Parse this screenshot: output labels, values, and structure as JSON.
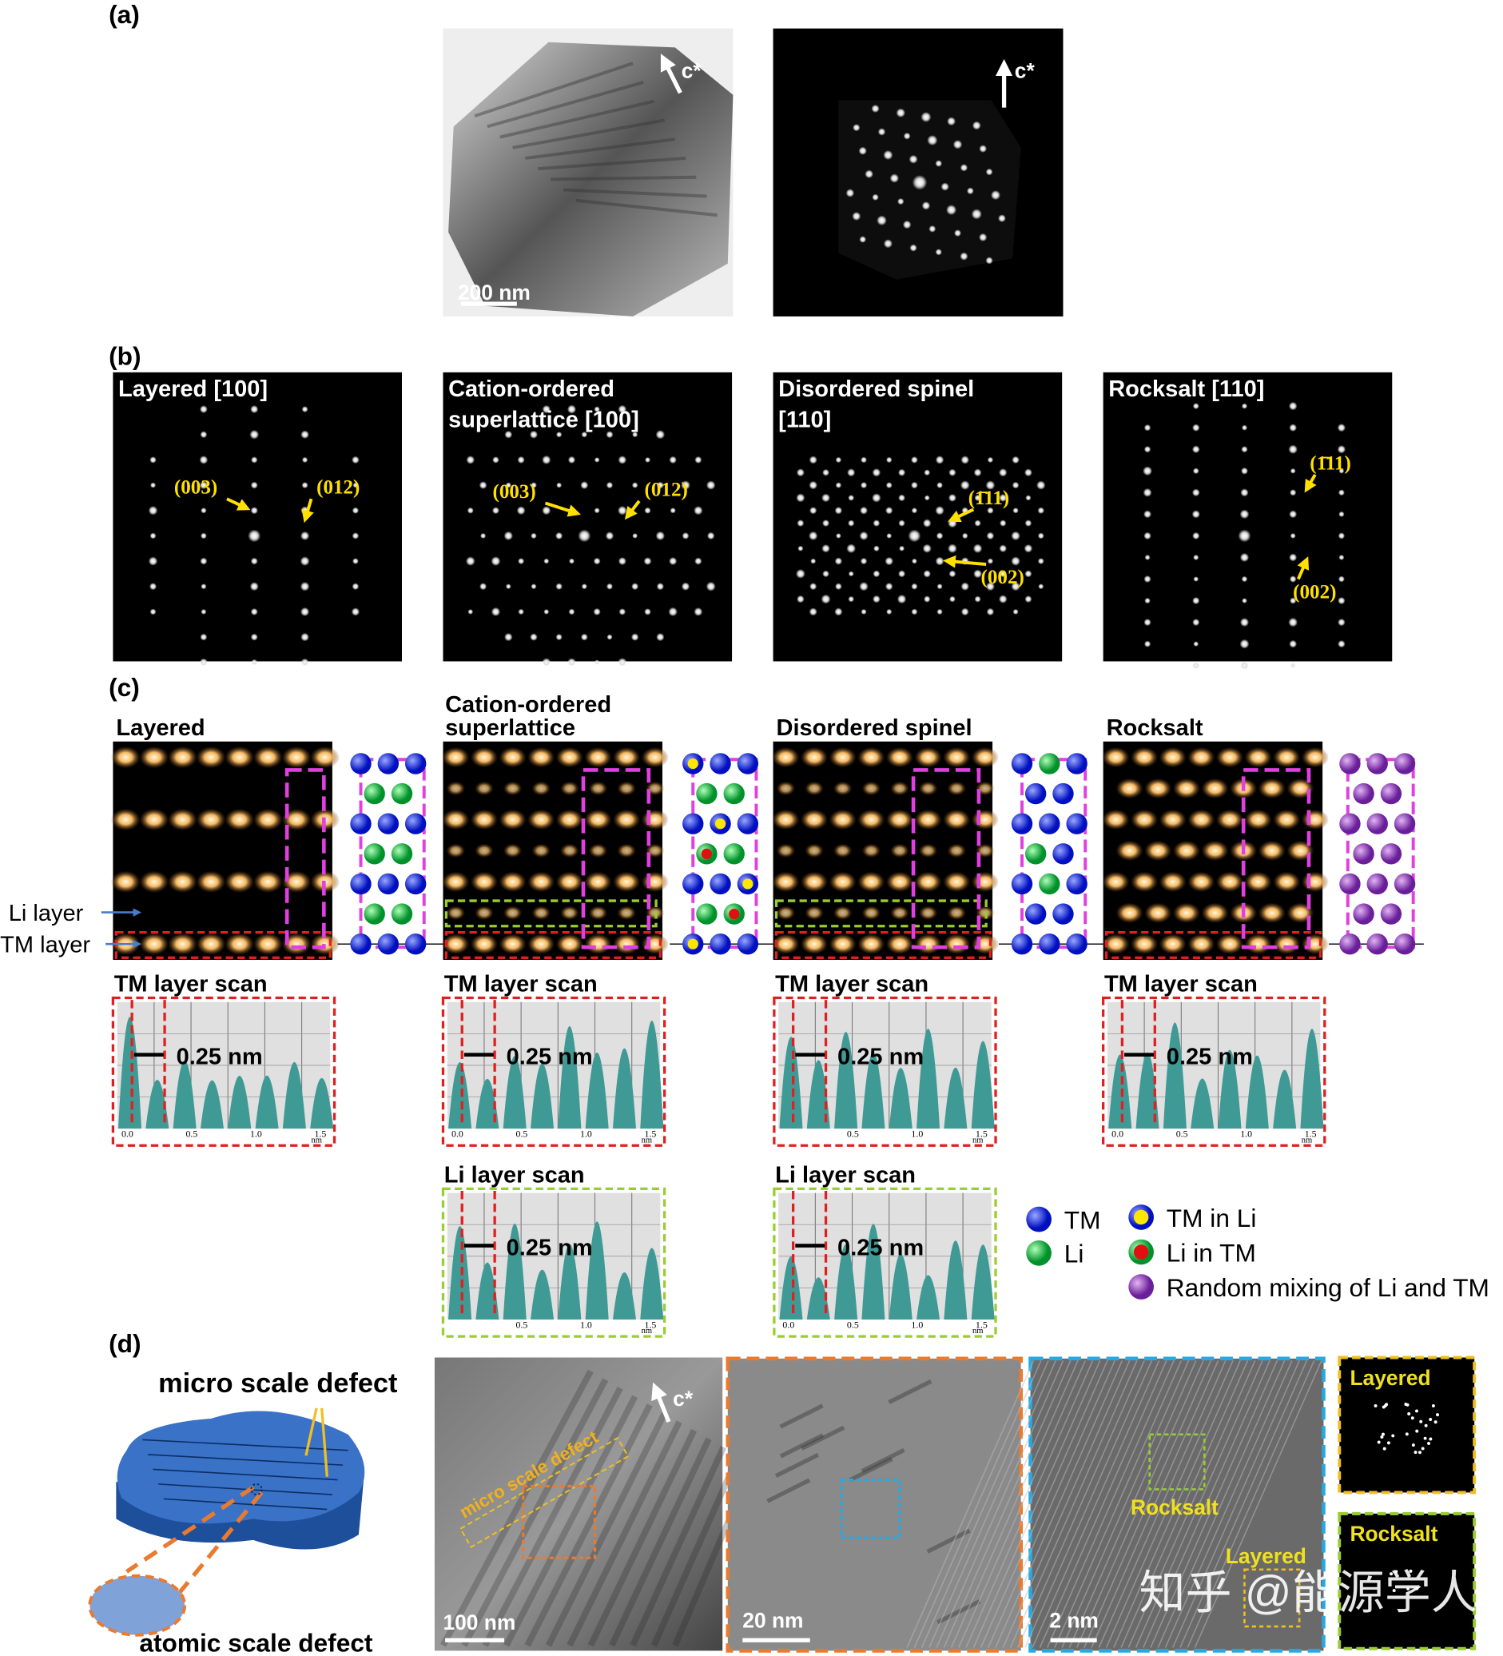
{
  "figure": {
    "a": {
      "label": "(a)",
      "tem_axis": "c*",
      "diffraction_axis": "c*",
      "scale_bar": "200 nm"
    },
    "b": {
      "label": "(b)",
      "patterns": [
        {
          "title": [
            "Layered [100]"
          ],
          "indices": [
            "(003)",
            "(012)"
          ]
        },
        {
          "title": [
            "Cation-ordered",
            "superlattice [100]"
          ],
          "indices": [
            "(003)",
            "(012)"
          ]
        },
        {
          "title": [
            "Disordered spinel",
            "[110]"
          ],
          "indices": [
            "(1̄11)",
            "(002)"
          ]
        },
        {
          "title": [
            "Rocksalt [110]"
          ],
          "indices": [
            "(1̄11)",
            "(002)"
          ]
        }
      ]
    },
    "c": {
      "label": "(c)",
      "phases": [
        {
          "title": [
            "Layered"
          ]
        },
        {
          "title": [
            "Cation-ordered",
            "superlattice"
          ]
        },
        {
          "title": [
            "Disordered spinel"
          ]
        },
        {
          "title": [
            "Rocksalt"
          ]
        }
      ],
      "layer_labels": [
        "Li layer",
        "TM layer"
      ],
      "tm_scans": [
        {
          "title": "TM layer scan",
          "distance": "0.25 nm",
          "ticks": [
            "0.0",
            "0.5",
            "1.0",
            "1.5"
          ],
          "unit": "nm"
        },
        {
          "title": "TM layer scan",
          "distance": "0.25 nm",
          "ticks": [
            "0.0",
            "0.5",
            "1.0",
            "1.5"
          ],
          "unit": "nm"
        },
        {
          "title": "TM layer scan",
          "distance": "0.25 nm",
          "ticks": [
            "0.5",
            "1.0",
            "1.5"
          ],
          "unit": "nm"
        },
        {
          "title": "TM layer scan",
          "distance": "0.25 nm",
          "ticks": [
            "0.0",
            "0.5",
            "1.0",
            "1.5"
          ],
          "unit": "nm"
        }
      ],
      "li_scans": [
        {
          "title": "Li layer scan",
          "distance": "0.25 nm",
          "ticks": [
            "0.5",
            "1.0",
            "1.5"
          ],
          "unit": "nm"
        },
        {
          "title": "Li layer scan",
          "distance": "0.25 nm",
          "ticks": [
            "0.0",
            "0.5",
            "1.0",
            "1.5"
          ],
          "unit": "nm"
        }
      ],
      "legend": [
        "TM",
        "Li",
        "TM in Li",
        "Li in TM",
        "Random mixing of Li and TM"
      ]
    },
    "d": {
      "label": "(d)",
      "schematic": [
        "micro scale defect",
        "atomic scale defect"
      ],
      "tem": {
        "annotation": "micro scale defect",
        "axis": "c*",
        "scale_bar": "100 nm"
      },
      "zoom1": {
        "scale_bar": "20 nm"
      },
      "zoom2": {
        "labels": [
          "Rocksalt",
          "Layered"
        ],
        "scale_bar": "2 nm"
      },
      "fft": [
        "Layered",
        "Rocksalt"
      ]
    },
    "watermark": "知乎 @能源学人"
  }
}
